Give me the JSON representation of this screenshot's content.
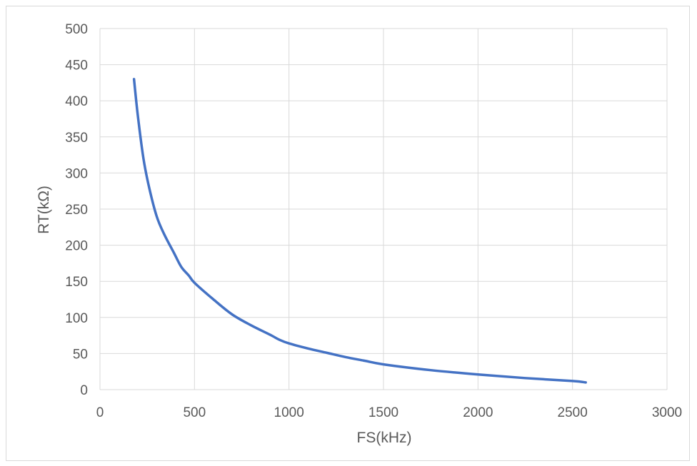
{
  "chart_data": {
    "type": "line",
    "title": "",
    "xlabel": "FS(kHz)",
    "ylabel": "RT(kΩ)",
    "xlim": [
      0,
      3000
    ],
    "ylim": [
      0,
      500
    ],
    "x_ticks": [
      "0",
      "500",
      "1000",
      "1500",
      "2000",
      "2500",
      "3000"
    ],
    "y_ticks": [
      "0",
      "50",
      "100",
      "150",
      "200",
      "250",
      "300",
      "350",
      "400",
      "450",
      "500"
    ],
    "grid": true,
    "legend": "none",
    "series": [
      {
        "color": "#4472c4",
        "x": [
          180,
          200,
          230,
          260,
          300,
          340,
          390,
          430,
          470,
          500,
          600,
          700,
          800,
          900,
          950,
          1000,
          1100,
          1200,
          1300,
          1400,
          1500,
          1750,
          2000,
          2250,
          2500,
          2570
        ],
        "y": [
          430,
          380,
          320,
          280,
          240,
          215,
          190,
          170,
          158,
          148,
          125,
          104,
          89,
          76,
          69,
          64,
          57,
          51,
          45,
          40,
          35,
          27,
          21,
          16,
          12,
          10
        ]
      }
    ]
  }
}
